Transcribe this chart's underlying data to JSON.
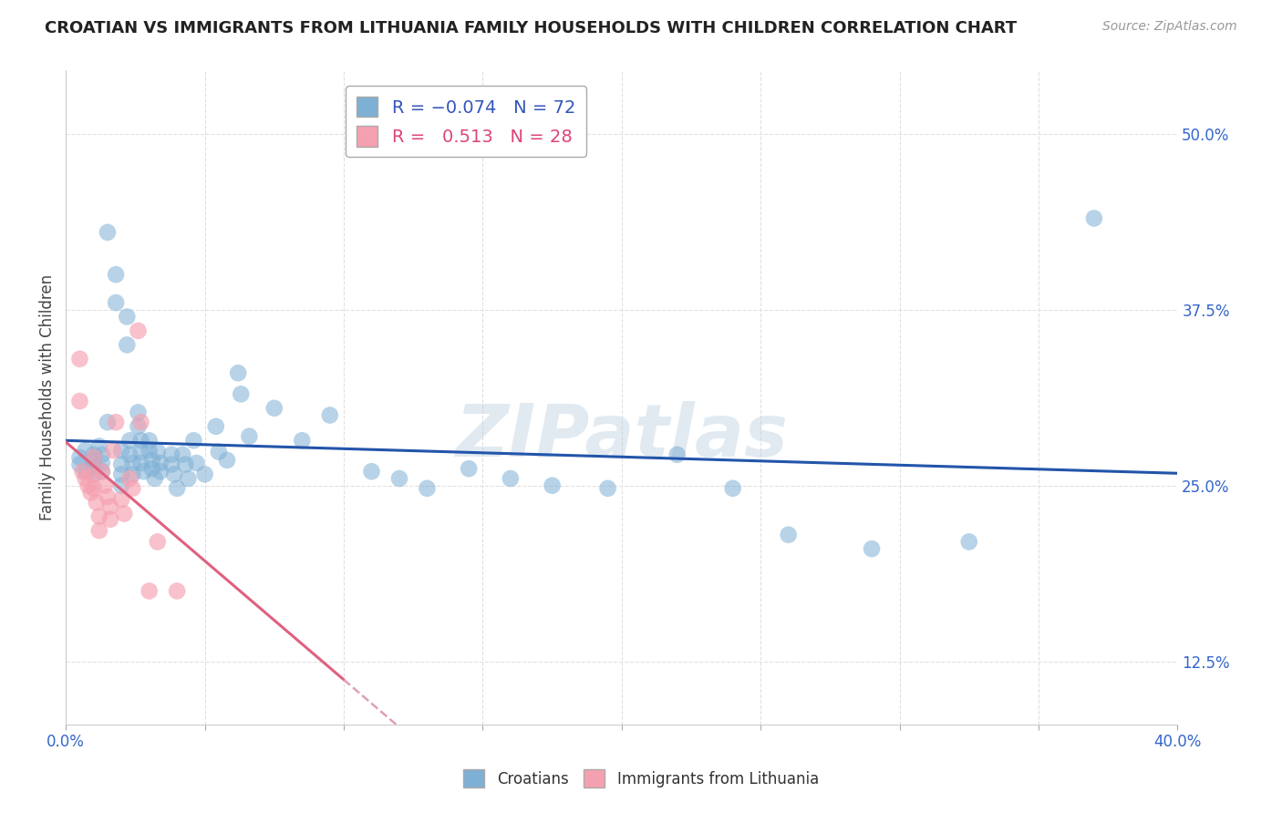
{
  "title": "CROATIAN VS IMMIGRANTS FROM LITHUANIA FAMILY HOUSEHOLDS WITH CHILDREN CORRELATION CHART",
  "source": "Source: ZipAtlas.com",
  "xlabel": "",
  "ylabel": "Family Households with Children",
  "xlim": [
    0.0,
    0.4
  ],
  "ylim": [
    0.08,
    0.545
  ],
  "xticks": [
    0.0,
    0.05,
    0.1,
    0.15,
    0.2,
    0.25,
    0.3,
    0.35,
    0.4
  ],
  "yticks": [
    0.125,
    0.25,
    0.375,
    0.5
  ],
  "ytick_labels": [
    "12.5%",
    "25.0%",
    "37.5%",
    "50.0%"
  ],
  "blue_R": -0.074,
  "blue_N": 72,
  "pink_R": 0.513,
  "pink_N": 28,
  "blue_color": "#7EB0D5",
  "pink_color": "#F5A0B0",
  "blue_line_color": "#2255AA",
  "pink_line_color": "#E06080",
  "dash_line_color": "#E0A0B0",
  "blue_dots": [
    [
      0.005,
      0.27
    ],
    [
      0.005,
      0.265
    ],
    [
      0.007,
      0.275
    ],
    [
      0.007,
      0.26
    ],
    [
      0.01,
      0.272
    ],
    [
      0.01,
      0.268
    ],
    [
      0.01,
      0.263
    ],
    [
      0.01,
      0.258
    ],
    [
      0.012,
      0.278
    ],
    [
      0.013,
      0.272
    ],
    [
      0.013,
      0.266
    ],
    [
      0.013,
      0.26
    ],
    [
      0.015,
      0.295
    ],
    [
      0.015,
      0.43
    ],
    [
      0.018,
      0.4
    ],
    [
      0.018,
      0.38
    ],
    [
      0.02,
      0.275
    ],
    [
      0.02,
      0.265
    ],
    [
      0.02,
      0.258
    ],
    [
      0.02,
      0.25
    ],
    [
      0.022,
      0.37
    ],
    [
      0.022,
      0.35
    ],
    [
      0.023,
      0.282
    ],
    [
      0.023,
      0.272
    ],
    [
      0.024,
      0.266
    ],
    [
      0.024,
      0.258
    ],
    [
      0.026,
      0.302
    ],
    [
      0.026,
      0.292
    ],
    [
      0.027,
      0.282
    ],
    [
      0.027,
      0.274
    ],
    [
      0.027,
      0.266
    ],
    [
      0.028,
      0.26
    ],
    [
      0.03,
      0.282
    ],
    [
      0.03,
      0.275
    ],
    [
      0.031,
      0.268
    ],
    [
      0.031,
      0.262
    ],
    [
      0.032,
      0.255
    ],
    [
      0.033,
      0.274
    ],
    [
      0.034,
      0.266
    ],
    [
      0.034,
      0.26
    ],
    [
      0.038,
      0.272
    ],
    [
      0.038,
      0.265
    ],
    [
      0.039,
      0.258
    ],
    [
      0.04,
      0.248
    ],
    [
      0.042,
      0.272
    ],
    [
      0.043,
      0.265
    ],
    [
      0.044,
      0.255
    ],
    [
      0.046,
      0.282
    ],
    [
      0.047,
      0.266
    ],
    [
      0.05,
      0.258
    ],
    [
      0.054,
      0.292
    ],
    [
      0.055,
      0.274
    ],
    [
      0.058,
      0.268
    ],
    [
      0.062,
      0.33
    ],
    [
      0.063,
      0.315
    ],
    [
      0.066,
      0.285
    ],
    [
      0.075,
      0.305
    ],
    [
      0.085,
      0.282
    ],
    [
      0.095,
      0.3
    ],
    [
      0.11,
      0.26
    ],
    [
      0.12,
      0.255
    ],
    [
      0.13,
      0.248
    ],
    [
      0.145,
      0.262
    ],
    [
      0.16,
      0.255
    ],
    [
      0.175,
      0.25
    ],
    [
      0.195,
      0.248
    ],
    [
      0.22,
      0.272
    ],
    [
      0.24,
      0.248
    ],
    [
      0.26,
      0.215
    ],
    [
      0.29,
      0.205
    ],
    [
      0.325,
      0.21
    ],
    [
      0.37,
      0.44
    ]
  ],
  "pink_dots": [
    [
      0.005,
      0.34
    ],
    [
      0.005,
      0.31
    ],
    [
      0.006,
      0.26
    ],
    [
      0.007,
      0.255
    ],
    [
      0.008,
      0.25
    ],
    [
      0.009,
      0.245
    ],
    [
      0.01,
      0.27
    ],
    [
      0.01,
      0.258
    ],
    [
      0.01,
      0.248
    ],
    [
      0.011,
      0.238
    ],
    [
      0.012,
      0.228
    ],
    [
      0.012,
      0.218
    ],
    [
      0.013,
      0.26
    ],
    [
      0.014,
      0.25
    ],
    [
      0.015,
      0.242
    ],
    [
      0.016,
      0.235
    ],
    [
      0.016,
      0.226
    ],
    [
      0.017,
      0.275
    ],
    [
      0.018,
      0.295
    ],
    [
      0.02,
      0.24
    ],
    [
      0.021,
      0.23
    ],
    [
      0.023,
      0.255
    ],
    [
      0.024,
      0.248
    ],
    [
      0.026,
      0.36
    ],
    [
      0.027,
      0.295
    ],
    [
      0.03,
      0.175
    ],
    [
      0.033,
      0.21
    ],
    [
      0.04,
      0.175
    ]
  ],
  "watermark": "ZIPatlas",
  "background_color": "#FFFFFF",
  "grid_color": "#E0E0E0"
}
